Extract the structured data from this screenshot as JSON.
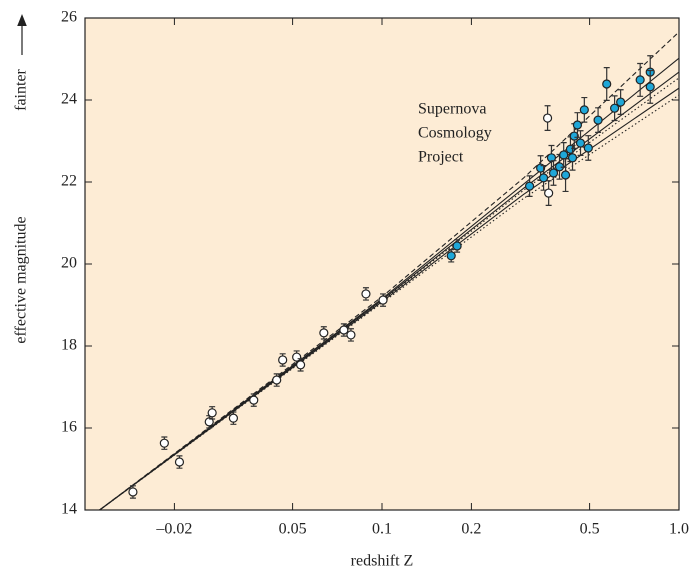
{
  "chart_data": {
    "type": "scatter",
    "xlabel": "redshift Z",
    "ylabel": "effective magnitude",
    "ylabel_note": "fainter",
    "annotation": [
      "Supernova",
      "Cosmology",
      "Project"
    ],
    "xscale": "log",
    "xlim": [
      0.01,
      1.0
    ],
    "ylim": [
      14,
      26
    ],
    "xticks": [
      {
        "value": 0.02,
        "label": "–0.02"
      },
      0.05,
      0.1,
      0.2,
      0.5,
      {
        "value": 1.0,
        "label": "1.0"
      }
    ],
    "yticks": [
      14,
      16,
      18,
      20,
      22,
      24,
      26
    ],
    "background": "#fdecd5",
    "series": [
      {
        "marker": "open",
        "color": "#ffffff",
        "x": [
          0.0145,
          0.0185,
          0.0208,
          0.0262,
          0.0268,
          0.0316,
          0.037,
          0.0442,
          0.0463,
          0.0516,
          0.0532,
          0.0637,
          0.0744,
          0.0786,
          0.0883,
          0.1008,
          0.361,
          0.364
        ],
        "values": [
          14.44,
          15.63,
          15.17,
          16.15,
          16.37,
          16.24,
          16.68,
          17.17,
          17.66,
          17.73,
          17.54,
          18.32,
          18.39,
          18.27,
          19.27,
          19.12,
          23.56,
          21.73
        ],
        "errors": [
          0.15,
          0.15,
          0.15,
          0.15,
          0.15,
          0.15,
          0.15,
          0.15,
          0.15,
          0.15,
          0.15,
          0.15,
          0.15,
          0.15,
          0.15,
          0.15,
          0.3,
          0.3
        ]
      },
      {
        "marker": "filled",
        "color": "#1fa7d8",
        "x": [
          0.171,
          0.179,
          0.314,
          0.342,
          0.35,
          0.372,
          0.378,
          0.396,
          0.409,
          0.415,
          0.431,
          0.438,
          0.444,
          0.455,
          0.466,
          0.48,
          0.495,
          0.534,
          0.571,
          0.607,
          0.636,
          0.74,
          0.8,
          0.8
        ],
        "values": [
          20.2,
          20.44,
          21.9,
          22.34,
          22.1,
          22.59,
          22.22,
          22.37,
          22.66,
          22.17,
          22.8,
          22.59,
          23.12,
          23.39,
          22.95,
          23.76,
          22.83,
          23.51,
          24.39,
          23.8,
          23.95,
          24.49,
          24.68,
          24.32
        ],
        "errors": [
          0.15,
          0.15,
          0.25,
          0.3,
          0.3,
          0.3,
          0.3,
          0.3,
          0.3,
          0.4,
          0.3,
          0.3,
          0.3,
          0.3,
          0.3,
          0.3,
          0.3,
          0.3,
          0.4,
          0.3,
          0.3,
          0.4,
          0.4,
          0.4
        ]
      }
    ],
    "curve_x": [
      0.0112,
      0.1,
      0.3,
      1.0
    ],
    "curves": [
      {
        "style": "dashed",
        "values": [
          14.0,
          19.2,
          22.1,
          25.66
        ]
      },
      {
        "style": "solid",
        "values": [
          14.0,
          19.15,
          21.95,
          25.02
        ]
      },
      {
        "style": "solid",
        "values": [
          14.0,
          19.12,
          21.85,
          24.68
        ]
      },
      {
        "style": "dotted",
        "values": [
          14.0,
          19.1,
          21.8,
          24.54
        ]
      },
      {
        "style": "solid",
        "values": [
          14.0,
          19.08,
          21.7,
          24.29
        ]
      },
      {
        "style": "dotted",
        "values": [
          14.0,
          19.05,
          21.6,
          24.12
        ]
      }
    ]
  }
}
